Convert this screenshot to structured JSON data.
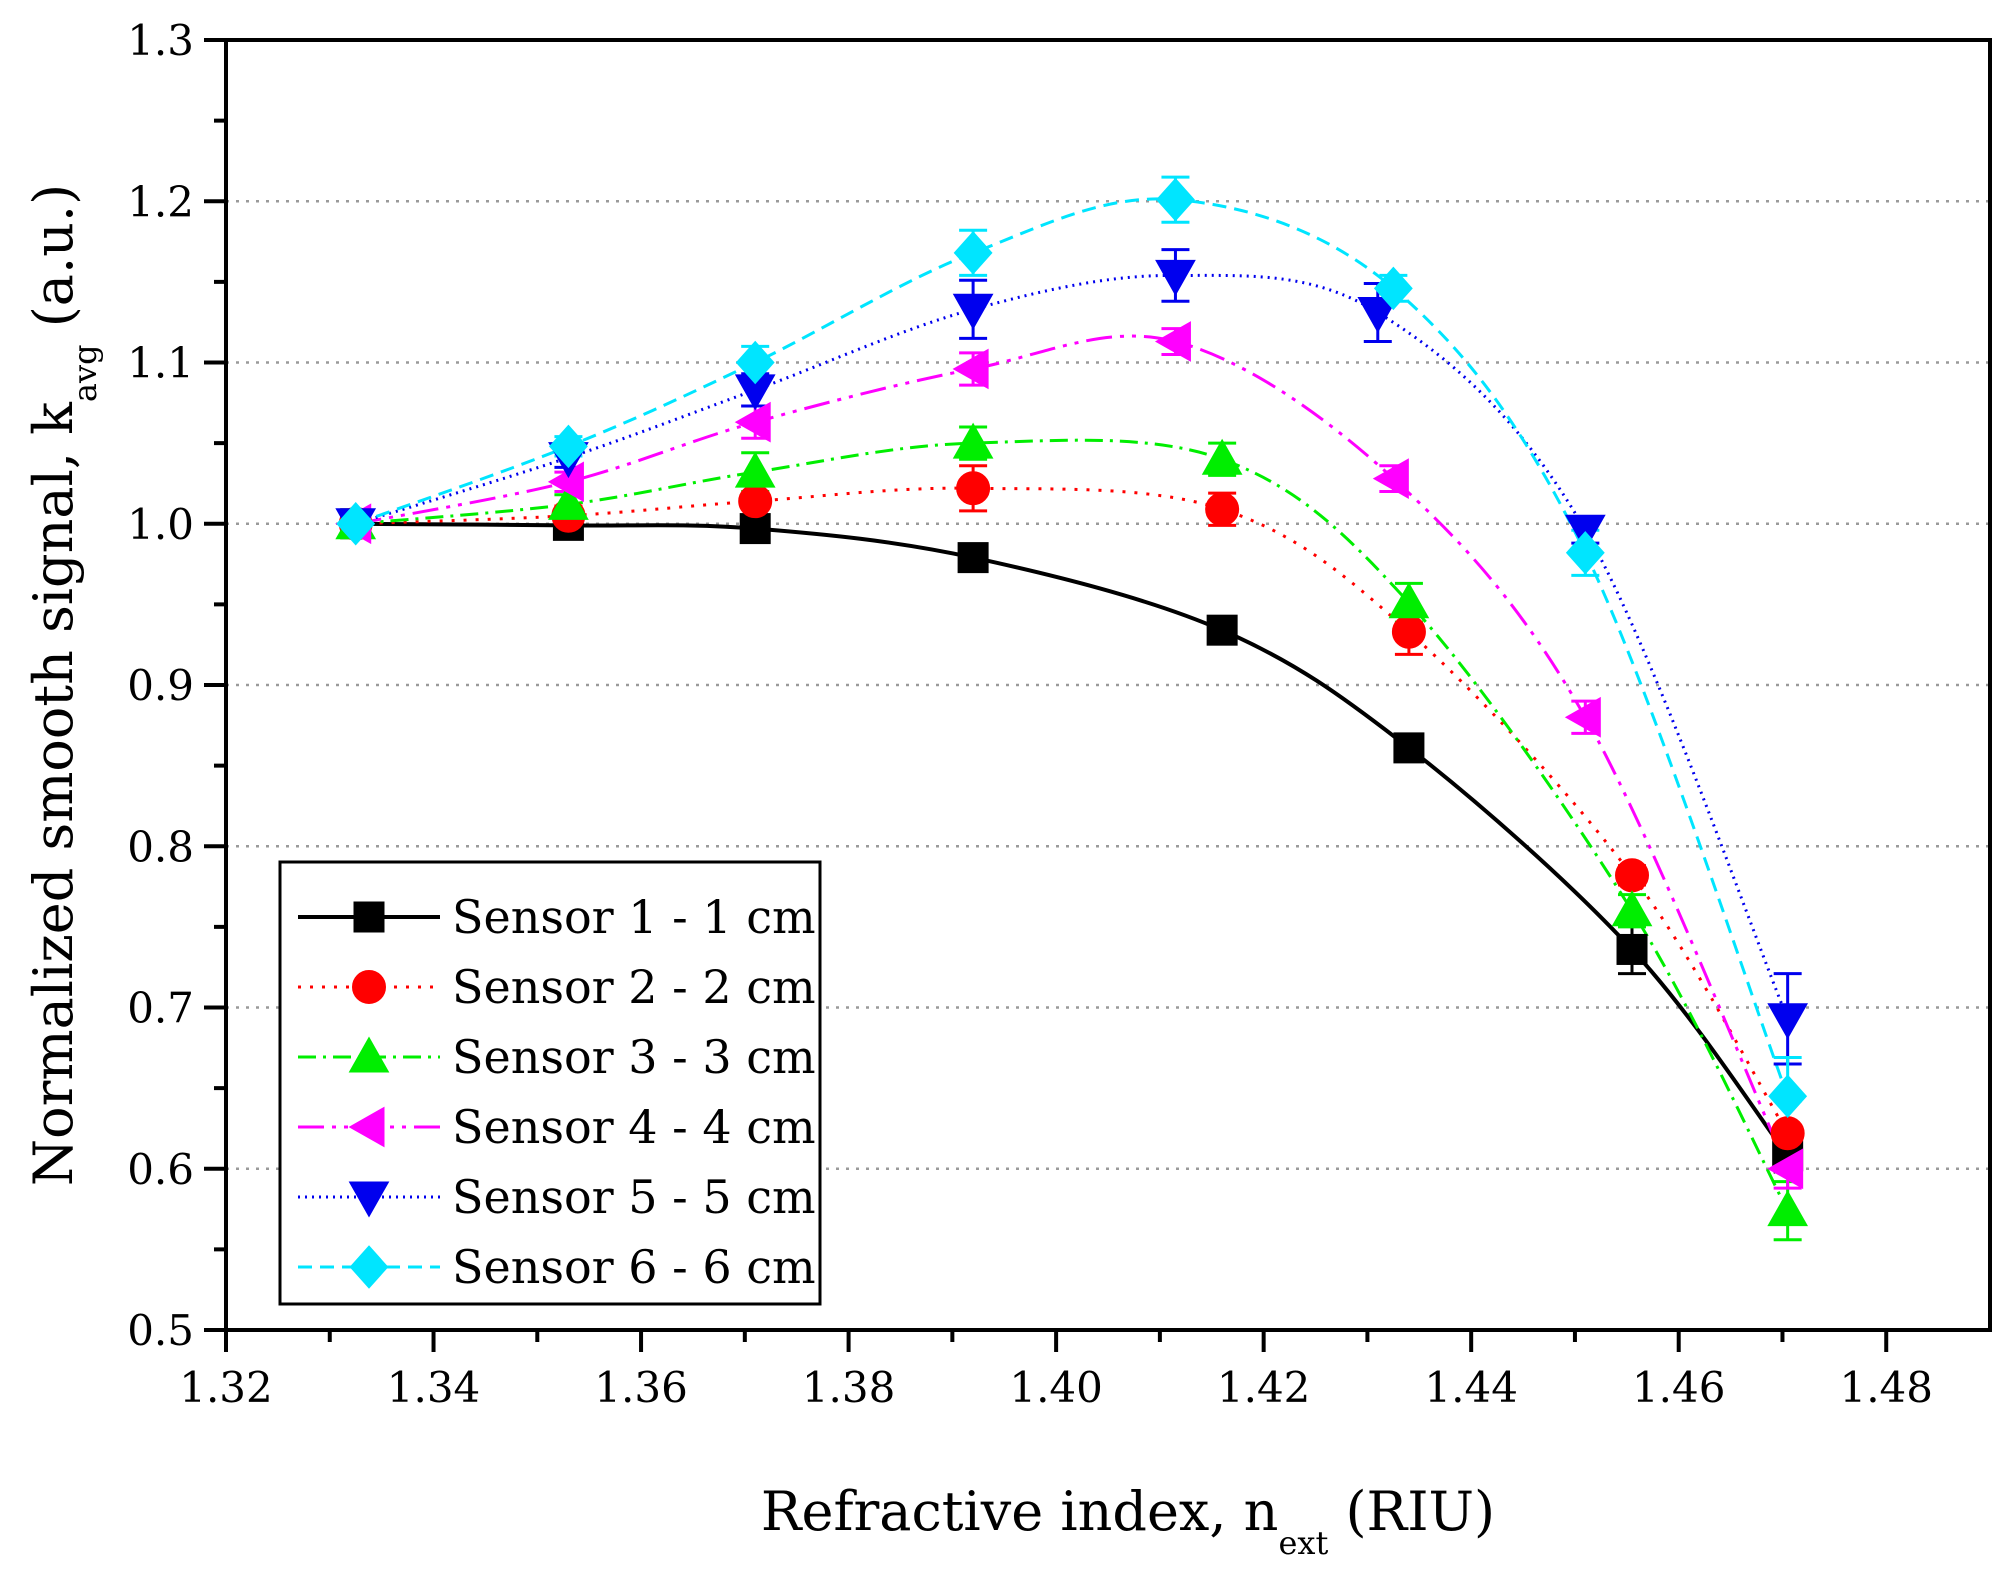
{
  "chart_data": {
    "type": "line",
    "title": "",
    "xlabel": {
      "main": "Refractive index, n",
      "sub": "ext",
      "suffix": " (RIU)"
    },
    "ylabel": {
      "main": "Normalized smooth signal, k",
      "sub": "avg",
      "suffix": " (a.u.)"
    },
    "xlim": [
      1.32,
      1.49
    ],
    "ylim": [
      0.5,
      1.3
    ],
    "xticks": [
      "1.32",
      "1.34",
      "1.36",
      "1.38",
      "1.40",
      "1.42",
      "1.44",
      "1.46",
      "1.48"
    ],
    "yticks": [
      "0.5",
      "0.6",
      "0.7",
      "0.8",
      "0.9",
      "1.0",
      "1.1",
      "1.2",
      "1.3"
    ],
    "grid": "horizontal dotted at 0.6 to 1.2",
    "legend_position": "bottom-left",
    "series": [
      {
        "name": "Sensor 1 - 1 cm",
        "color": "#000000",
        "marker": "square",
        "dash": "solid",
        "x": [
          1.3325,
          1.353,
          1.371,
          1.392,
          1.416,
          1.434,
          1.4555,
          1.4705
        ],
        "y": [
          1.0,
          0.999,
          0.997,
          0.979,
          0.934,
          0.861,
          0.736,
          0.608
        ],
        "err": [
          0.003,
          0.004,
          0.005,
          0.006,
          0.006,
          0.007,
          0.015,
          0.01
        ]
      },
      {
        "name": "Sensor 2 - 2 cm",
        "color": "#ff0000",
        "marker": "circle",
        "dash": "dotted",
        "x": [
          1.3325,
          1.353,
          1.371,
          1.392,
          1.416,
          1.434,
          1.4555,
          1.4705
        ],
        "y": [
          1.0,
          1.005,
          1.014,
          1.022,
          1.009,
          0.933,
          0.782,
          0.622
        ],
        "err": [
          0.003,
          0.006,
          0.01,
          0.014,
          0.01,
          0.014,
          0.006,
          0.02
        ]
      },
      {
        "name": "Sensor 3 - 3 cm",
        "color": "#00ee00",
        "marker": "triangle-up",
        "dash": "dashdot",
        "x": [
          1.3325,
          1.353,
          1.371,
          1.392,
          1.416,
          1.434,
          1.4555,
          1.4705
        ],
        "y": [
          1.0,
          1.012,
          1.032,
          1.05,
          1.04,
          0.951,
          0.76,
          0.574
        ],
        "err": [
          0.003,
          0.006,
          0.012,
          0.01,
          0.01,
          0.012,
          0.01,
          0.018
        ]
      },
      {
        "name": "Sensor 4 - 4 cm",
        "color": "#ff00ff",
        "marker": "triangle-left",
        "dash": "dashdotdot",
        "x": [
          1.3325,
          1.353,
          1.371,
          1.392,
          1.4115,
          1.4325,
          1.451,
          1.4705
        ],
        "y": [
          1.0,
          1.026,
          1.063,
          1.096,
          1.113,
          1.028,
          0.88,
          0.6
        ],
        "err": [
          0.003,
          0.006,
          0.01,
          0.01,
          0.008,
          0.008,
          0.01,
          0.012
        ]
      },
      {
        "name": "Sensor 5 - 5 cm",
        "color": "#0000ee",
        "marker": "triangle-down",
        "dash": "shortdot",
        "x": [
          1.3325,
          1.353,
          1.371,
          1.392,
          1.4115,
          1.431,
          1.451,
          1.4705
        ],
        "y": [
          1.0,
          1.041,
          1.083,
          1.133,
          1.154,
          1.131,
          0.996,
          0.693
        ],
        "err": [
          0.003,
          0.006,
          0.01,
          0.018,
          0.016,
          0.018,
          0.008,
          0.028
        ]
      },
      {
        "name": "Sensor 6 - 6 cm",
        "color": "#00e5ff",
        "marker": "diamond",
        "dash": "dashed",
        "x": [
          1.3325,
          1.353,
          1.371,
          1.392,
          1.4115,
          1.4325,
          1.451,
          1.4705
        ],
        "y": [
          1.0,
          1.048,
          1.1,
          1.168,
          1.201,
          1.146,
          0.982,
          0.645
        ],
        "err": [
          0.003,
          0.006,
          0.01,
          0.014,
          0.014,
          0.008,
          0.014,
          0.024
        ]
      }
    ]
  }
}
